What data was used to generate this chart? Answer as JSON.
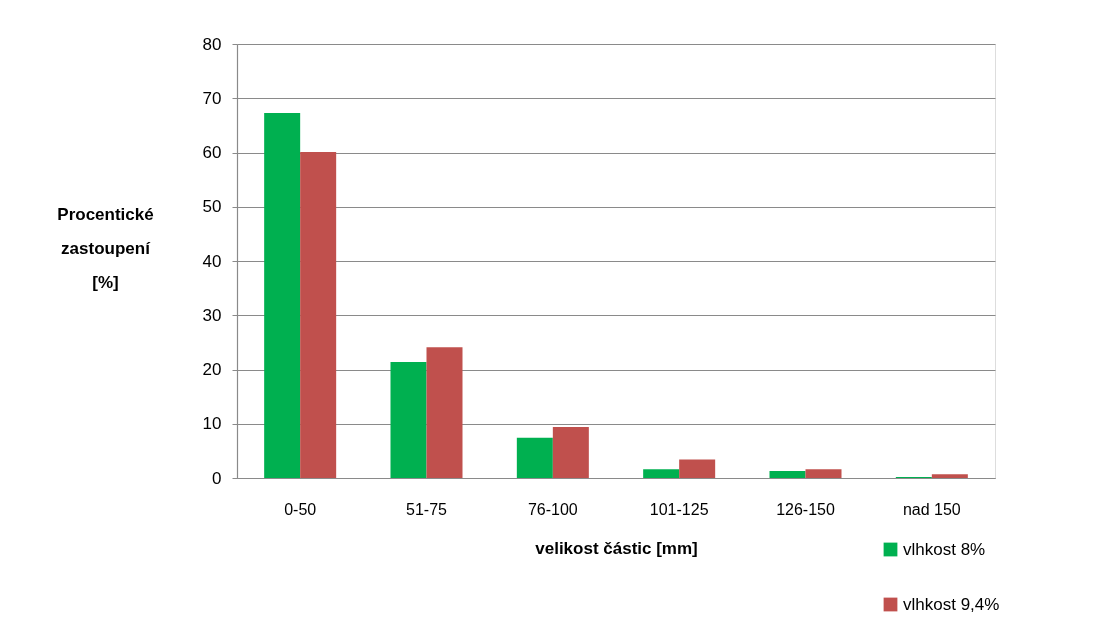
{
  "chart_data": {
    "type": "bar",
    "xlabel": "velikost částic [mm]",
    "ylabel": "Procentické zastoupení [%]",
    "categories": [
      "0-50",
      "51-75",
      "76-100",
      "101-125",
      "126-150",
      "nad 150"
    ],
    "series": [
      {
        "name": "vlhkost 8%",
        "color": "#00b050",
        "values": [
          67.3,
          21.4,
          7.4,
          1.6,
          1.3,
          0.2
        ]
      },
      {
        "name": "vlhkost 9,4%",
        "color": "#c0504d",
        "values": [
          60.1,
          24.1,
          9.4,
          3.4,
          1.6,
          0.7
        ]
      }
    ],
    "ylim": [
      0,
      80
    ],
    "yticks": [
      0,
      10,
      20,
      30,
      40,
      50,
      60,
      70,
      80
    ],
    "grid": "y",
    "legend": "bottom right"
  }
}
